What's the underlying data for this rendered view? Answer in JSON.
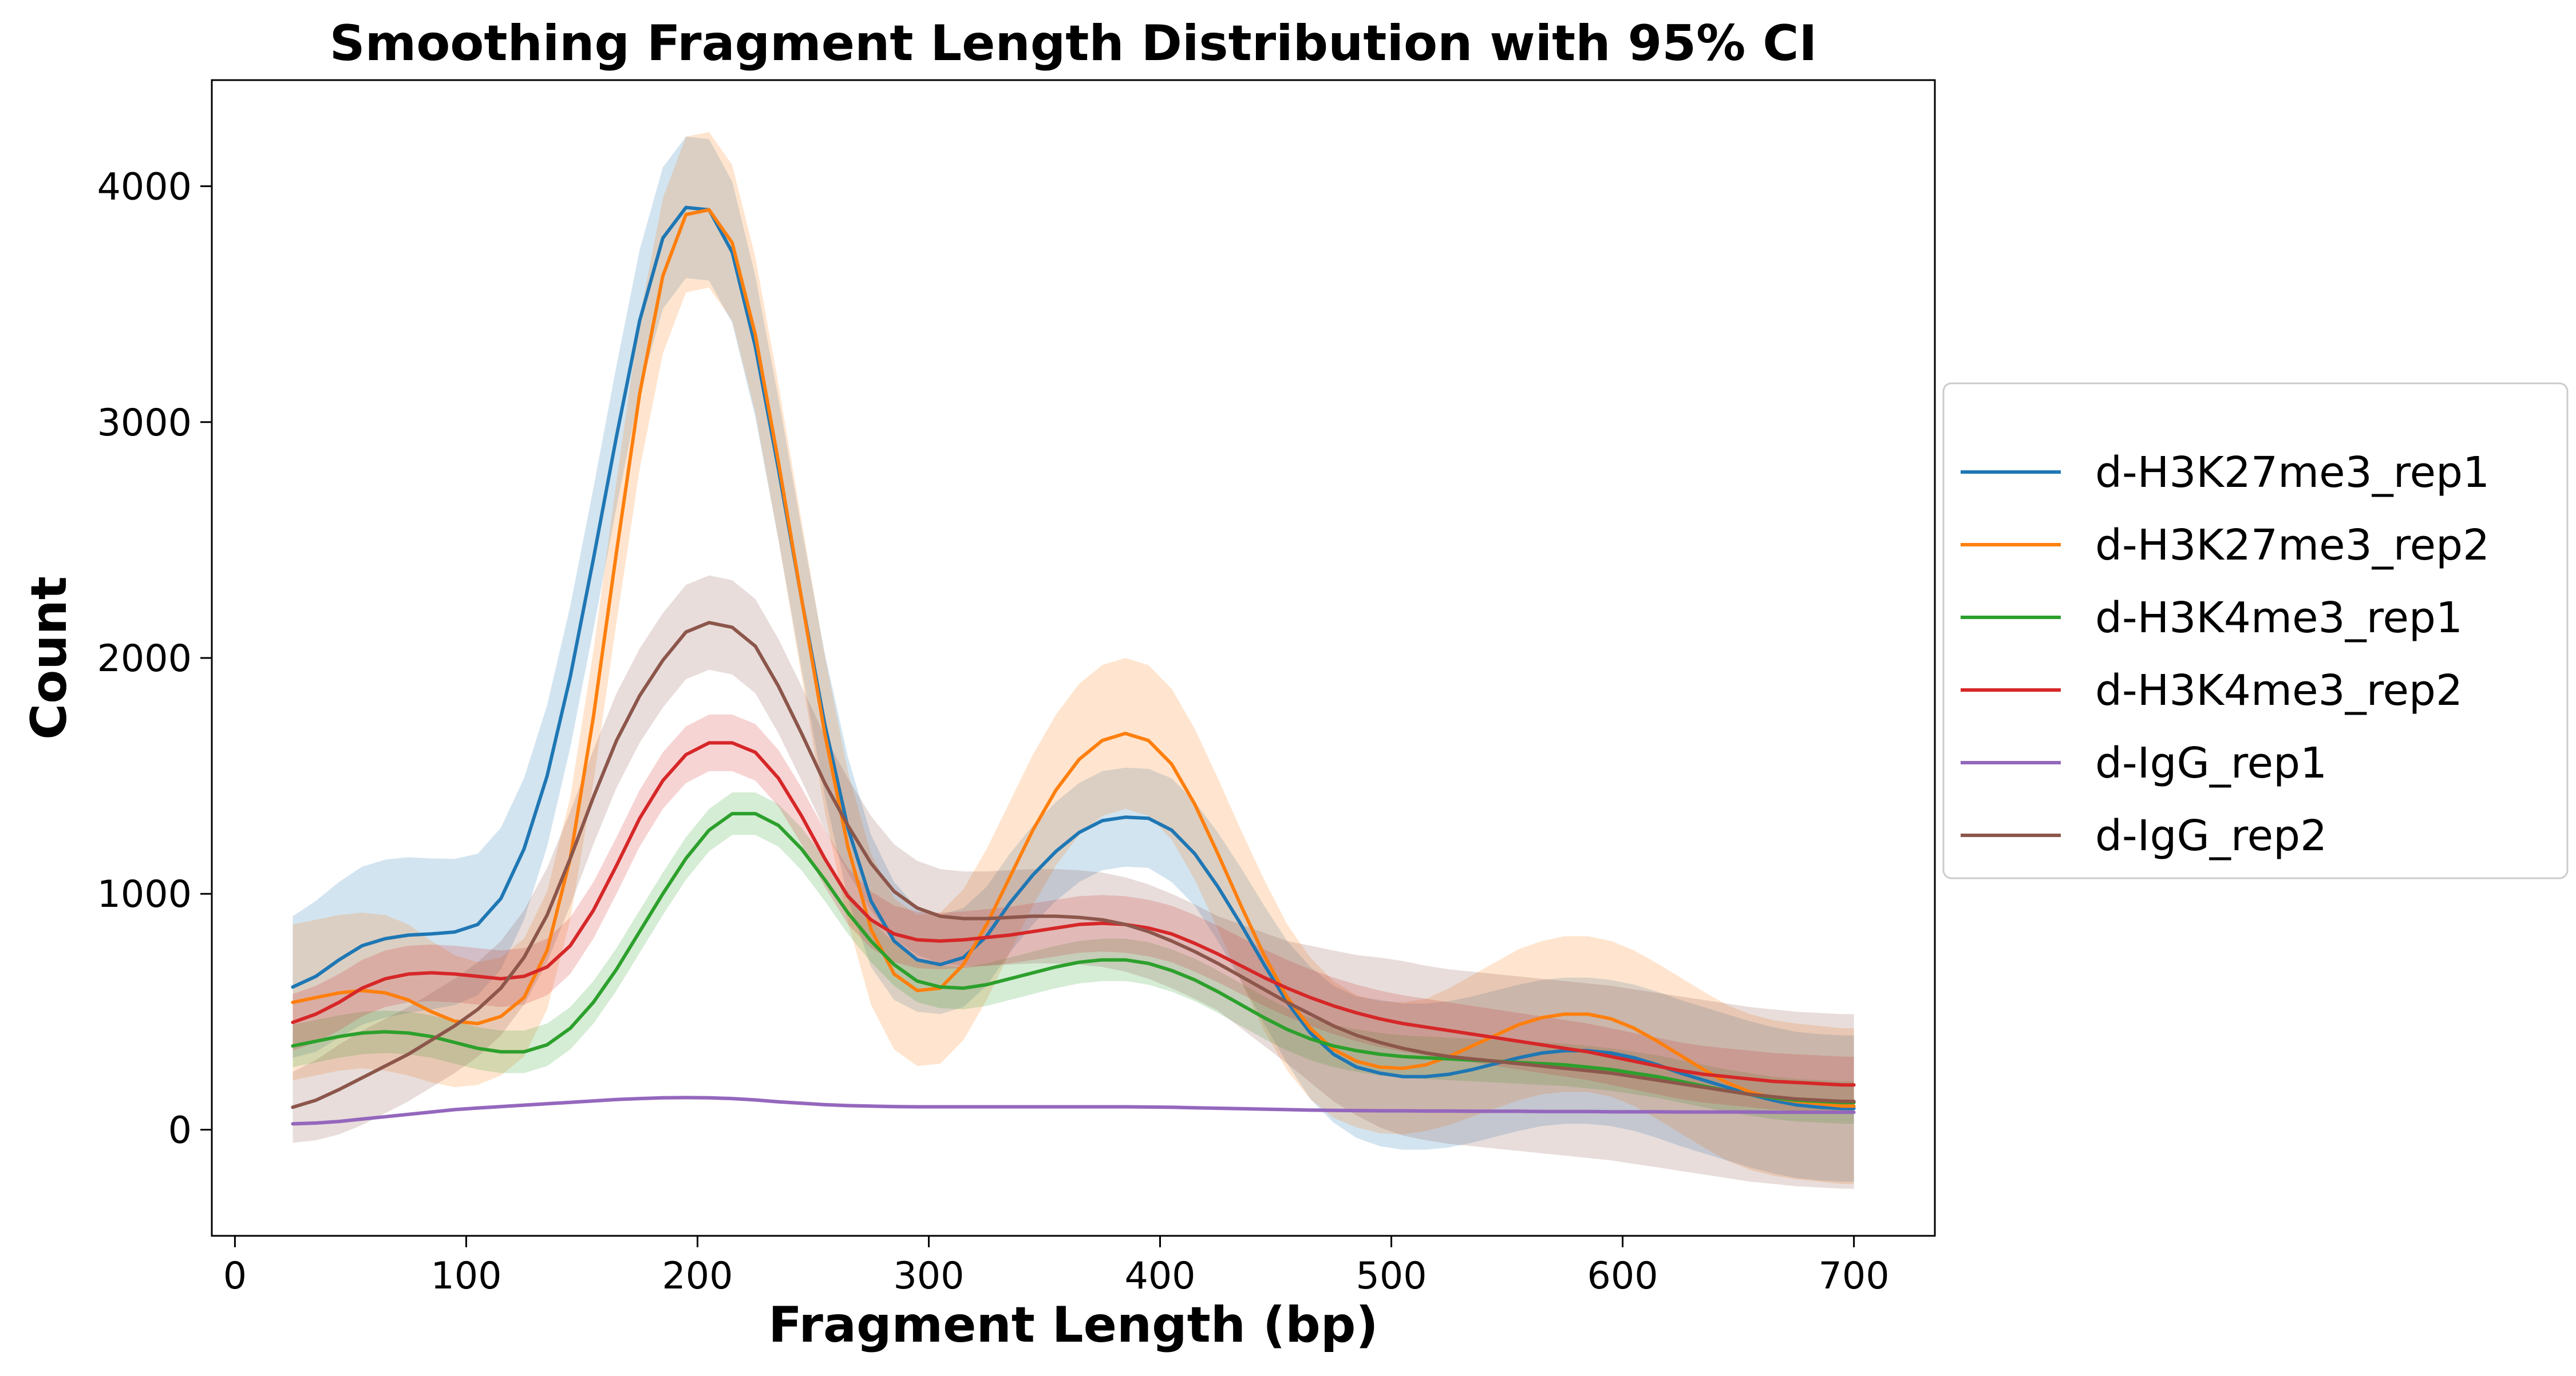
{
  "chart_data": {
    "type": "line",
    "title": "Smoothing Fragment Length Distribution with 95% CI",
    "xlabel": "Fragment Length (bp)",
    "ylabel": "Count",
    "xlim": [
      -10,
      735
    ],
    "ylim": [
      -450,
      4450
    ],
    "xticks": [
      0,
      100,
      200,
      300,
      400,
      500,
      600,
      700
    ],
    "yticks": [
      0,
      1000,
      2000,
      3000,
      4000
    ],
    "grid": false,
    "legend_position": "outside-right",
    "x": [
      25,
      35,
      45,
      55,
      65,
      75,
      85,
      95,
      105,
      115,
      125,
      135,
      145,
      155,
      165,
      175,
      185,
      195,
      205,
      215,
      225,
      235,
      245,
      255,
      265,
      275,
      285,
      295,
      305,
      315,
      325,
      335,
      345,
      355,
      365,
      375,
      385,
      395,
      405,
      415,
      425,
      435,
      445,
      455,
      465,
      475,
      485,
      495,
      505,
      515,
      525,
      535,
      545,
      555,
      565,
      575,
      585,
      595,
      605,
      615,
      625,
      635,
      645,
      655,
      665,
      675,
      685,
      695,
      700
    ],
    "series": [
      {
        "name": "d-H3K27me3_rep1",
        "color": "#1f77b4",
        "values": [
          605,
          650,
          720,
          780,
          810,
          825,
          830,
          838,
          870,
          980,
          1190,
          1500,
          1920,
          2420,
          2940,
          3430,
          3780,
          3910,
          3900,
          3720,
          3320,
          2800,
          2250,
          1720,
          1280,
          970,
          800,
          720,
          700,
          730,
          820,
          960,
          1080,
          1180,
          1260,
          1310,
          1325,
          1320,
          1270,
          1170,
          1030,
          870,
          700,
          540,
          410,
          320,
          265,
          240,
          225,
          225,
          235,
          255,
          280,
          305,
          325,
          335,
          335,
          325,
          305,
          275,
          240,
          210,
          180,
          150,
          125,
          105,
          95,
          90,
          90
        ],
        "ci_width": [
          300,
          320,
          330,
          335,
          335,
          330,
          320,
          310,
          300,
          300,
          300,
          300,
          300,
          300,
          300,
          300,
          300,
          300,
          300,
          300,
          300,
          300,
          300,
          300,
          300,
          280,
          250,
          220,
          210,
          210,
          210,
          210,
          210,
          210,
          210,
          210,
          210,
          210,
          220,
          220,
          230,
          240,
          250,
          260,
          280,
          290,
          300,
          310,
          310,
          310,
          310,
          310,
          310,
          310,
          310,
          310,
          310,
          310,
          310,
          310,
          310,
          310,
          310,
          310,
          310,
          310,
          310,
          310,
          310
        ]
      },
      {
        "name": "d-H3K27me3_rep2",
        "color": "#ff7f0e",
        "values": [
          540,
          560,
          580,
          590,
          580,
          550,
          500,
          460,
          450,
          480,
          560,
          760,
          1150,
          1750,
          2450,
          3120,
          3620,
          3880,
          3900,
          3760,
          3370,
          2830,
          2250,
          1680,
          1200,
          850,
          660,
          590,
          600,
          700,
          870,
          1070,
          1270,
          1440,
          1570,
          1650,
          1680,
          1650,
          1550,
          1380,
          1170,
          950,
          740,
          560,
          430,
          340,
          290,
          265,
          260,
          275,
          310,
          355,
          400,
          445,
          475,
          490,
          490,
          470,
          430,
          375,
          315,
          255,
          200,
          160,
          135,
          120,
          110,
          100,
          100
        ],
        "ci_width": [
          330,
          330,
          330,
          330,
          330,
          320,
          300,
          280,
          260,
          250,
          250,
          250,
          260,
          280,
          300,
          320,
          330,
          330,
          330,
          330,
          330,
          330,
          330,
          330,
          320,
          320,
          320,
          320,
          320,
          320,
          320,
          320,
          320,
          320,
          320,
          320,
          320,
          320,
          320,
          320,
          320,
          320,
          320,
          310,
          300,
          290,
          280,
          280,
          280,
          280,
          290,
          300,
          310,
          320,
          325,
          330,
          330,
          330,
          330,
          330,
          330,
          330,
          330,
          330,
          330,
          330,
          330,
          330,
          330
        ]
      },
      {
        "name": "d-H3K4me3_rep1",
        "color": "#2ca02c",
        "values": [
          355,
          375,
          395,
          410,
          415,
          410,
          395,
          370,
          345,
          330,
          330,
          360,
          430,
          540,
          680,
          840,
          1000,
          1150,
          1270,
          1340,
          1340,
          1290,
          1190,
          1060,
          920,
          800,
          700,
          630,
          605,
          600,
          615,
          640,
          665,
          690,
          710,
          720,
          720,
          705,
          675,
          635,
          585,
          530,
          475,
          425,
          385,
          355,
          335,
          320,
          310,
          305,
          300,
          295,
          290,
          285,
          280,
          275,
          265,
          255,
          240,
          225,
          205,
          185,
          165,
          150,
          135,
          125,
          120,
          115,
          115
        ],
        "ci_width": [
          90,
          90,
          90,
          90,
          90,
          90,
          90,
          90,
          90,
          90,
          90,
          90,
          90,
          90,
          90,
          90,
          90,
          90,
          90,
          90,
          90,
          90,
          90,
          90,
          90,
          90,
          90,
          90,
          90,
          90,
          90,
          90,
          90,
          90,
          90,
          90,
          90,
          90,
          90,
          90,
          90,
          90,
          90,
          90,
          90,
          90,
          90,
          90,
          90,
          90,
          90,
          90,
          90,
          90,
          90,
          90,
          90,
          90,
          90,
          90,
          90,
          90,
          90,
          90,
          90,
          90,
          90,
          90,
          90
        ]
      },
      {
        "name": "d-H3K4me3_rep2",
        "color": "#d62728",
        "values": [
          455,
          490,
          540,
          600,
          640,
          660,
          665,
          660,
          650,
          640,
          650,
          690,
          780,
          930,
          1120,
          1320,
          1480,
          1590,
          1640,
          1640,
          1600,
          1490,
          1330,
          1150,
          990,
          890,
          830,
          805,
          800,
          805,
          815,
          825,
          840,
          855,
          870,
          875,
          870,
          855,
          830,
          790,
          745,
          695,
          645,
          600,
          560,
          525,
          495,
          470,
          450,
          435,
          420,
          405,
          390,
          375,
          360,
          345,
          330,
          310,
          290,
          270,
          250,
          235,
          225,
          215,
          205,
          200,
          195,
          190,
          190
        ],
        "ci_width": [
          120,
          120,
          120,
          120,
          120,
          120,
          120,
          120,
          120,
          120,
          120,
          120,
          120,
          120,
          120,
          120,
          120,
          120,
          120,
          120,
          120,
          120,
          120,
          120,
          120,
          120,
          120,
          120,
          120,
          120,
          120,
          120,
          120,
          120,
          120,
          120,
          120,
          120,
          120,
          120,
          120,
          120,
          120,
          120,
          120,
          120,
          120,
          120,
          120,
          120,
          120,
          120,
          120,
          120,
          120,
          120,
          120,
          120,
          120,
          120,
          120,
          120,
          120,
          120,
          120,
          120,
          120,
          120,
          120
        ]
      },
      {
        "name": "d-IgG_rep1",
        "color": "#9467bd",
        "values": [
          25,
          28,
          35,
          45,
          55,
          65,
          75,
          85,
          92,
          98,
          104,
          110,
          116,
          122,
          128,
          132,
          135,
          136,
          135,
          132,
          126,
          118,
          112,
          106,
          102,
          100,
          98,
          97,
          97,
          97,
          97,
          97,
          97,
          97,
          97,
          97,
          97,
          96,
          95,
          93,
          91,
          89,
          87,
          85,
          83,
          82,
          81,
          80,
          80,
          79,
          79,
          78,
          78,
          78,
          77,
          77,
          77,
          76,
          76,
          76,
          75,
          75,
          75,
          75,
          74,
          74,
          74,
          74,
          74
        ],
        "ci_width": [
          8,
          8,
          8,
          8,
          8,
          8,
          8,
          8,
          8,
          8,
          8,
          8,
          8,
          8,
          8,
          8,
          8,
          8,
          8,
          8,
          8,
          8,
          8,
          8,
          8,
          8,
          8,
          8,
          8,
          8,
          8,
          8,
          8,
          8,
          8,
          8,
          8,
          8,
          8,
          8,
          8,
          8,
          8,
          8,
          8,
          8,
          8,
          8,
          8,
          8,
          8,
          8,
          8,
          8,
          8,
          8,
          8,
          8,
          8,
          8,
          8,
          8,
          8,
          8,
          8,
          8,
          8,
          8,
          8
        ]
      },
      {
        "name": "d-IgG_rep2",
        "color": "#8c564b",
        "values": [
          95,
          125,
          170,
          220,
          270,
          320,
          380,
          440,
          510,
          600,
          730,
          910,
          1150,
          1410,
          1650,
          1840,
          1990,
          2110,
          2150,
          2130,
          2050,
          1880,
          1680,
          1470,
          1290,
          1130,
          1010,
          940,
          905,
          895,
          895,
          900,
          905,
          905,
          900,
          890,
          870,
          840,
          800,
          755,
          705,
          650,
          595,
          540,
          490,
          440,
          400,
          370,
          345,
          325,
          310,
          300,
          290,
          280,
          270,
          260,
          250,
          240,
          225,
          210,
          195,
          180,
          165,
          150,
          140,
          130,
          125,
          120,
          120
        ],
        "ci_width": [
          150,
          170,
          190,
          200,
          200,
          200,
          200,
          200,
          200,
          200,
          200,
          200,
          200,
          200,
          200,
          200,
          200,
          200,
          200,
          200,
          200,
          200,
          200,
          200,
          200,
          200,
          200,
          200,
          200,
          200,
          200,
          200,
          200,
          200,
          200,
          200,
          200,
          200,
          200,
          200,
          200,
          220,
          240,
          260,
          290,
          320,
          340,
          360,
          370,
          370,
          370,
          370,
          370,
          370,
          370,
          370,
          370,
          370,
          370,
          370,
          370,
          370,
          370,
          370,
          370,
          370,
          370,
          370,
          370
        ]
      }
    ]
  }
}
